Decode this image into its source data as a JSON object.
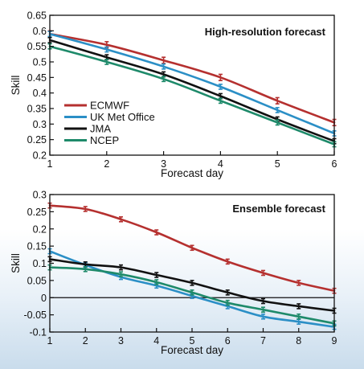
{
  "colors": {
    "ECMWF": "#b5302f",
    "UK Met Office": "#2b8fc6",
    "JMA": "#111111",
    "NCEP": "#1e8a6a"
  },
  "chart_data": [
    {
      "type": "line",
      "title": "High-resolution forecast",
      "xlabel": "Forecast day",
      "ylabel": "Skill",
      "xlim": [
        1,
        6
      ],
      "ylim": [
        0.2,
        0.65
      ],
      "x_ticks": [
        1,
        2,
        3,
        4,
        5,
        6
      ],
      "y_ticks": [
        "0.2",
        "0.25",
        "0.3",
        "0.35",
        "0.4",
        "0.45",
        "0.5",
        "0.55",
        "0.6",
        "0.65"
      ],
      "legend_position": "lower-left",
      "grid": false,
      "error_bars": true,
      "x": [
        1,
        2,
        3,
        4,
        5,
        6
      ],
      "series": [
        {
          "name": "ECMWF",
          "values": [
            0.59,
            0.555,
            0.505,
            0.45,
            0.375,
            0.305
          ],
          "err": 0.01
        },
        {
          "name": "UK Met Office",
          "values": [
            0.59,
            0.54,
            0.485,
            0.42,
            0.345,
            0.27
          ],
          "err": 0.008
        },
        {
          "name": "JMA",
          "values": [
            0.57,
            0.515,
            0.46,
            0.39,
            0.315,
            0.245
          ],
          "err": 0.008
        },
        {
          "name": "NCEP",
          "values": [
            0.55,
            0.5,
            0.445,
            0.375,
            0.305,
            0.235
          ],
          "err": 0.008
        }
      ]
    },
    {
      "type": "line",
      "title": "Ensemble forecast",
      "xlabel": "Forecast day",
      "ylabel": "Skill",
      "xlim": [
        1,
        9
      ],
      "ylim": [
        -0.1,
        0.3
      ],
      "x_ticks": [
        1,
        2,
        3,
        4,
        5,
        6,
        7,
        8,
        9
      ],
      "y_ticks": [
        "-0.1",
        "-0.05",
        "0",
        "0.05",
        "0.1",
        "0.15",
        "0.2",
        "0.25",
        "0.3"
      ],
      "zero_line": true,
      "grid": false,
      "error_bars": true,
      "x": [
        1,
        2,
        3,
        4,
        5,
        6,
        7,
        8,
        9
      ],
      "series": [
        {
          "name": "ECMWF",
          "values": [
            0.268,
            0.258,
            0.228,
            0.19,
            0.145,
            0.105,
            0.072,
            0.043,
            0.02
          ],
          "err": 0.007
        },
        {
          "name": "UK Met Office",
          "values": [
            0.135,
            0.095,
            0.06,
            0.035,
            0.005,
            -0.025,
            -0.055,
            -0.07,
            -0.085
          ],
          "err": 0.007
        },
        {
          "name": "JMA",
          "values": [
            0.112,
            0.097,
            0.088,
            0.066,
            0.043,
            0.015,
            -0.01,
            -0.025,
            -0.038
          ],
          "err": 0.007
        },
        {
          "name": "NCEP",
          "values": [
            0.088,
            0.083,
            0.068,
            0.045,
            0.015,
            -0.015,
            -0.035,
            -0.055,
            -0.075
          ],
          "err": 0.007
        }
      ]
    }
  ]
}
